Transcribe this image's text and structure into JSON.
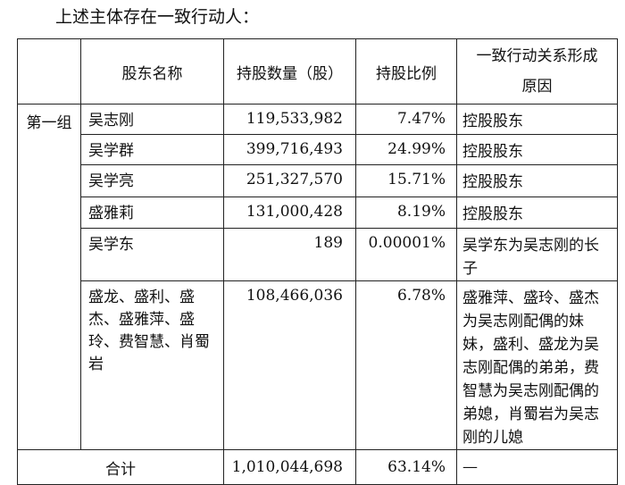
{
  "intro": "上述主体存在一致行动人：",
  "table": {
    "headers": {
      "name": "股东名称",
      "shares": "持股数量（股）",
      "ratio": "持股比例",
      "reason_line1": "一致行动关系形成",
      "reason_line2": "原因"
    },
    "group_label": "第一组",
    "rows": [
      {
        "name": "吴志刚",
        "shares": "119,533,982",
        "ratio": "7.47%",
        "reason": "控股股东"
      },
      {
        "name": "吴学群",
        "shares": "399,716,493",
        "ratio": "24.99%",
        "reason": "控股股东"
      },
      {
        "name": "吴学亮",
        "shares": "251,327,570",
        "ratio": "15.71%",
        "reason": "控股股东"
      },
      {
        "name": "盛雅莉",
        "shares": "131,000,428",
        "ratio": "8.19%",
        "reason": "控股股东"
      },
      {
        "name": "吴学东",
        "shares": "189",
        "ratio": "0.00001%",
        "reason": "吴学东为吴志刚的长子"
      },
      {
        "name": "盛龙、盛利、盛杰、盛雅萍、盛玲、费智慧、肖蜀岩",
        "shares": "108,466,036",
        "ratio": "6.78%",
        "reason": "盛雅萍、盛玲、盛杰为吴志刚配偶的妹妹，盛利、盛龙为吴志刚配偶的弟弟，费智慧为吴志刚配偶的弟媳，肖蜀岩为吴志刚的儿媳"
      }
    ],
    "total": {
      "label": "合计",
      "shares": "1,010,044,698",
      "ratio": "63.14%",
      "reason": "—"
    }
  }
}
